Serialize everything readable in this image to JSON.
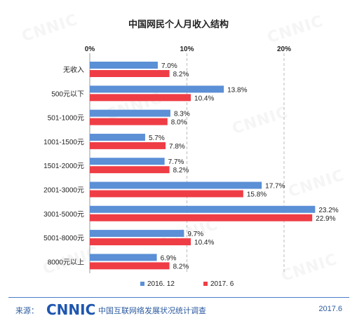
{
  "title": "中国网民个人月收入结构",
  "watermark_text": "CNNIC",
  "footer": {
    "source_label": "来源：",
    "logo_text": "CNNIC",
    "survey_name": "中国互联网络发展状况统计调查",
    "date": "2017.6"
  },
  "chart_data": {
    "type": "bar",
    "orientation": "horizontal",
    "title": "中国网民个人月收入结构",
    "xlim": [
      0,
      25
    ],
    "x_ticks": [
      "0%",
      "10%",
      "20%"
    ],
    "x_tick_values": [
      0,
      10,
      20
    ],
    "categories": [
      "无收入",
      "500元以下",
      "501-1000元",
      "1001-1500元",
      "1501-2000元",
      "2001-3000元",
      "3001-5000元",
      "5001-8000元",
      "8000元以上"
    ],
    "series": [
      {
        "name": "2016. 12",
        "color": "#5b8fd6",
        "values": [
          7.0,
          13.8,
          8.3,
          5.7,
          7.7,
          17.7,
          23.2,
          9.7,
          6.9
        ],
        "labels": [
          "7.0%",
          "13.8%",
          "8.3%",
          "5.7%",
          "7.7%",
          "17.7%",
          "23.2%",
          "9.7%",
          "6.9%"
        ]
      },
      {
        "name": "2017. 6",
        "color": "#ef3d46",
        "values": [
          8.2,
          10.4,
          8.0,
          7.8,
          8.2,
          15.8,
          22.9,
          10.4,
          8.2
        ],
        "labels": [
          "8.2%",
          "10.4%",
          "8.0%",
          "7.8%",
          "8.2%",
          "15.8%",
          "22.9%",
          "10.4%",
          "8.2%"
        ]
      }
    ],
    "grid": true,
    "legend_position": "bottom"
  }
}
